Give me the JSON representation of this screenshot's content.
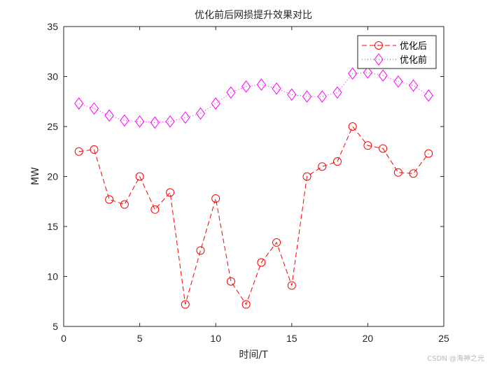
{
  "chart_data": {
    "type": "line",
    "title": "优化前后网损提升效果对比",
    "xlabel": "时间/T",
    "ylabel": "MW",
    "xlim": [
      0,
      25
    ],
    "ylim": [
      5,
      35
    ],
    "xticks": [
      0,
      5,
      10,
      15,
      20,
      25
    ],
    "yticks": [
      5,
      10,
      15,
      20,
      25,
      30,
      35
    ],
    "grid": false,
    "legend_position": "northeast",
    "x": [
      1,
      2,
      3,
      4,
      5,
      6,
      7,
      8,
      9,
      10,
      11,
      12,
      13,
      14,
      15,
      16,
      17,
      18,
      19,
      20,
      21,
      22,
      23,
      24
    ],
    "series": [
      {
        "name": "优化后",
        "color": "#ff0000",
        "line_style": "dashed",
        "marker": "circle",
        "values": [
          22.5,
          22.7,
          17.7,
          17.2,
          20.0,
          16.7,
          18.4,
          7.2,
          12.6,
          17.8,
          9.5,
          7.2,
          11.4,
          13.4,
          9.1,
          20.0,
          21.0,
          21.5,
          25.0,
          23.1,
          22.8,
          20.4,
          20.3,
          22.3
        ]
      },
      {
        "name": "优化前",
        "color": "#ff00ff",
        "line_style": "dotted",
        "marker": "diamond",
        "values": [
          27.3,
          26.8,
          26.1,
          25.6,
          25.5,
          25.4,
          25.5,
          25.9,
          26.3,
          27.3,
          28.4,
          29.0,
          29.2,
          28.8,
          28.2,
          28.0,
          28.0,
          28.4,
          30.3,
          30.4,
          30.1,
          29.5,
          29.1,
          28.1
        ]
      }
    ]
  },
  "watermark": "CSDN @海神之光"
}
